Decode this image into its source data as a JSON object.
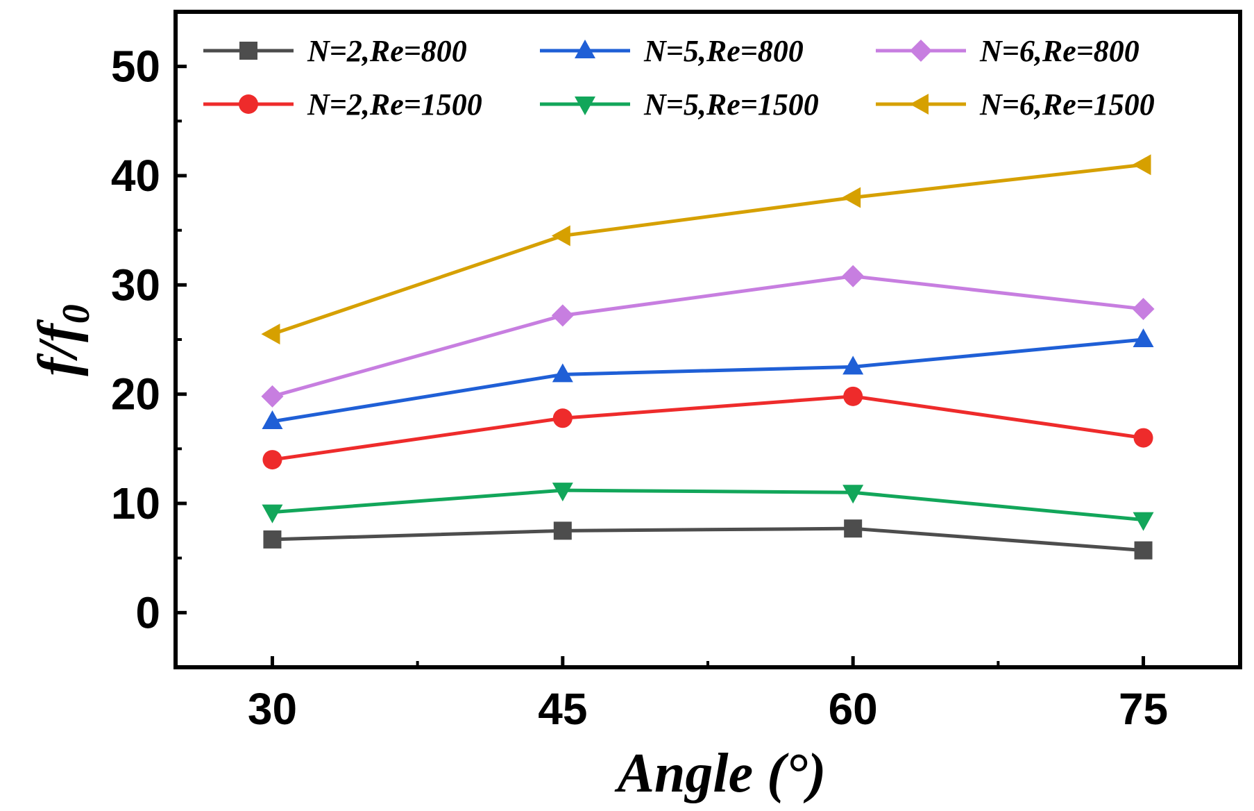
{
  "chart_data": {
    "type": "line",
    "xlabel": "Angle (°)",
    "ylabel_main": "f/f",
    "ylabel_sub": "0",
    "x": [
      30,
      45,
      60,
      75
    ],
    "xticks": [
      "30",
      "45",
      "60",
      "75"
    ],
    "xlim": [
      25,
      80
    ],
    "ylim": [
      -5,
      55
    ],
    "yticks": [
      "0",
      "10",
      "20",
      "30",
      "40",
      "50"
    ],
    "grid": false,
    "legend_position": "top",
    "series": [
      {
        "name": "N=2,Re=800",
        "color": "#4d4d4d",
        "marker": "square",
        "values": [
          6.7,
          7.5,
          7.7,
          5.7
        ]
      },
      {
        "name": "N=5,Re=800",
        "color": "#1f5fd6",
        "marker": "triangle-up",
        "values": [
          17.5,
          21.8,
          22.5,
          25.0
        ]
      },
      {
        "name": "N=6,Re=800",
        "color": "#c77ee0",
        "marker": "diamond",
        "values": [
          19.8,
          27.2,
          30.8,
          27.8
        ]
      },
      {
        "name": "N=2,Re=1500",
        "color": "#ee2b2b",
        "marker": "circle",
        "values": [
          14.0,
          17.8,
          19.8,
          16.0
        ]
      },
      {
        "name": "N=5,Re=1500",
        "color": "#12a65a",
        "marker": "triangle-down",
        "values": [
          9.2,
          11.2,
          11.0,
          8.5
        ]
      },
      {
        "name": "N=6,Re=1500",
        "color": "#d6a000",
        "marker": "triangle-left",
        "values": [
          25.5,
          34.5,
          38.0,
          41.0
        ]
      }
    ]
  }
}
